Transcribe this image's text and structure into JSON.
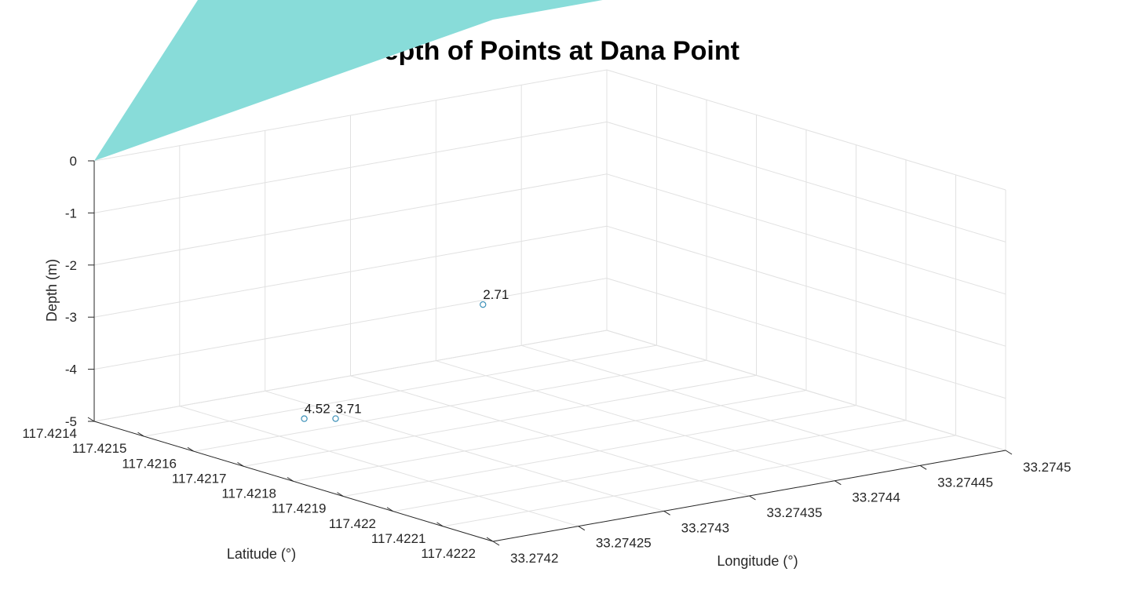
{
  "chart_data": {
    "type": "scatter",
    "title": "Depth of Points at Dana Point",
    "xlabel": "Longitude (°)",
    "ylabel": "Latitude (°)",
    "zlabel": "Depth (m)",
    "x_ticks": [
      "33.2742",
      "33.27425",
      "33.2743",
      "33.27435",
      "33.2744",
      "33.27445",
      "33.2745"
    ],
    "y_ticks": [
      "117.4214",
      "117.4215",
      "117.4216",
      "117.4217",
      "117.4218",
      "117.4219",
      "117.422",
      "117.4221",
      "117.4222"
    ],
    "z_ticks": [
      "-5",
      "-4",
      "-3",
      "-2",
      "-1",
      "0"
    ],
    "xlim": [
      33.2742,
      33.2745
    ],
    "ylim": [
      117.4214,
      117.4222
    ],
    "zlim": [
      -5,
      0
    ],
    "grid": true,
    "surface": {
      "z": 0,
      "color": "#88dcd9"
    },
    "marker_color": "#3a8fb7",
    "points": [
      {
        "x": 33.27421,
        "y": 117.42185,
        "z": -3.71,
        "label": "3.71"
      },
      {
        "x": 33.27425,
        "y": 117.42165,
        "z": -4.52,
        "label": "4.52"
      },
      {
        "x": 33.27434,
        "y": 117.4217,
        "z": -2.71,
        "label": "2.71"
      }
    ]
  }
}
